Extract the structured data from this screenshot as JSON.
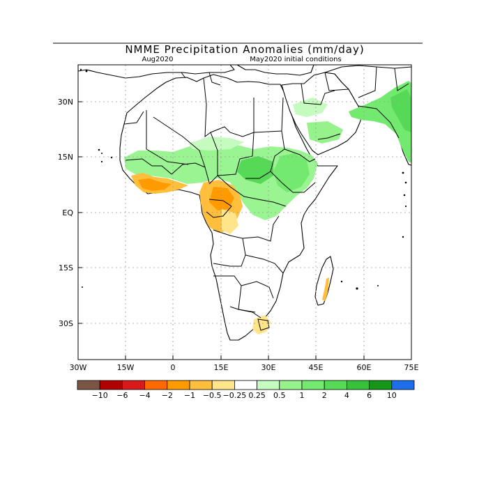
{
  "title": "NMME Precipitation Anomalies (mm/day)",
  "subtitle_left": "Aug2020",
  "subtitle_right": "May2020 initial conditions",
  "map": {
    "lon_range": [
      -30,
      75
    ],
    "lat_range": [
      -40,
      40
    ],
    "lon_ticks": [
      {
        "value": -30,
        "label": "30W"
      },
      {
        "value": -15,
        "label": "15W"
      },
      {
        "value": 0,
        "label": "0"
      },
      {
        "value": 15,
        "label": "15E"
      },
      {
        "value": 30,
        "label": "30E"
      },
      {
        "value": 45,
        "label": "45E"
      },
      {
        "value": 60,
        "label": "60E"
      },
      {
        "value": 75,
        "label": "75E"
      }
    ],
    "lat_ticks": [
      {
        "value": 30,
        "label": "30N"
      },
      {
        "value": 15,
        "label": "15N"
      },
      {
        "value": 0,
        "label": "EQ"
      },
      {
        "value": -15,
        "label": "15S"
      },
      {
        "value": -30,
        "label": "30S"
      }
    ],
    "gridlines": true
  },
  "colorbar": {
    "colors": [
      "#7b5544",
      "#b20000",
      "#d91a1a",
      "#ff6a00",
      "#ff9b00",
      "#ffbe3c",
      "#ffe58a",
      "#ffffff",
      "#c6fbc0",
      "#96f38c",
      "#73e970",
      "#56d957",
      "#35c23a",
      "#169616",
      "#1e6eeb"
    ],
    "labels": [
      "-10",
      "-6",
      "-4",
      "-2",
      "-1",
      "-0.5",
      "-0.25",
      "0.25",
      "0.5",
      "1",
      "2",
      "4",
      "6",
      "10"
    ]
  }
}
